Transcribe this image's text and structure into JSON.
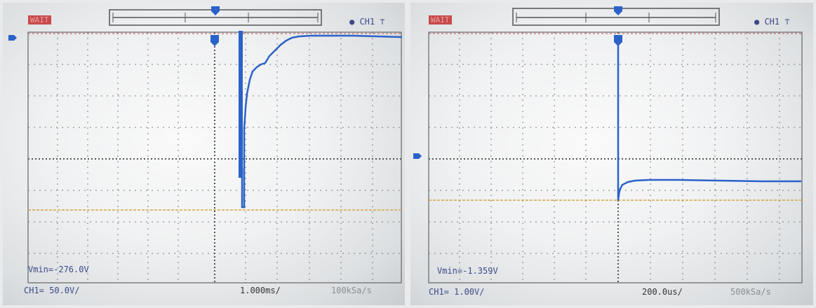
{
  "screens": [
    {
      "status": "WAIT",
      "channel": "CH1",
      "measurement": "Vmin=-276.0V",
      "ch_scale": "CH1= 50.0V/",
      "timebase": "1.000ms/",
      "sample_rate": "100kSa/s"
    },
    {
      "status": "WAIT",
      "channel": "CH1",
      "measurement": "Vmin=-1.359V",
      "ch_scale": "CH1= 1.00V/",
      "timebase": "200.0us/",
      "sample_rate": "500kSa/s"
    }
  ],
  "colors": {
    "trace": "#2a62c9",
    "grid": "#7a7c80",
    "reference": "#d4a640",
    "text": "#3a4a8a"
  }
}
